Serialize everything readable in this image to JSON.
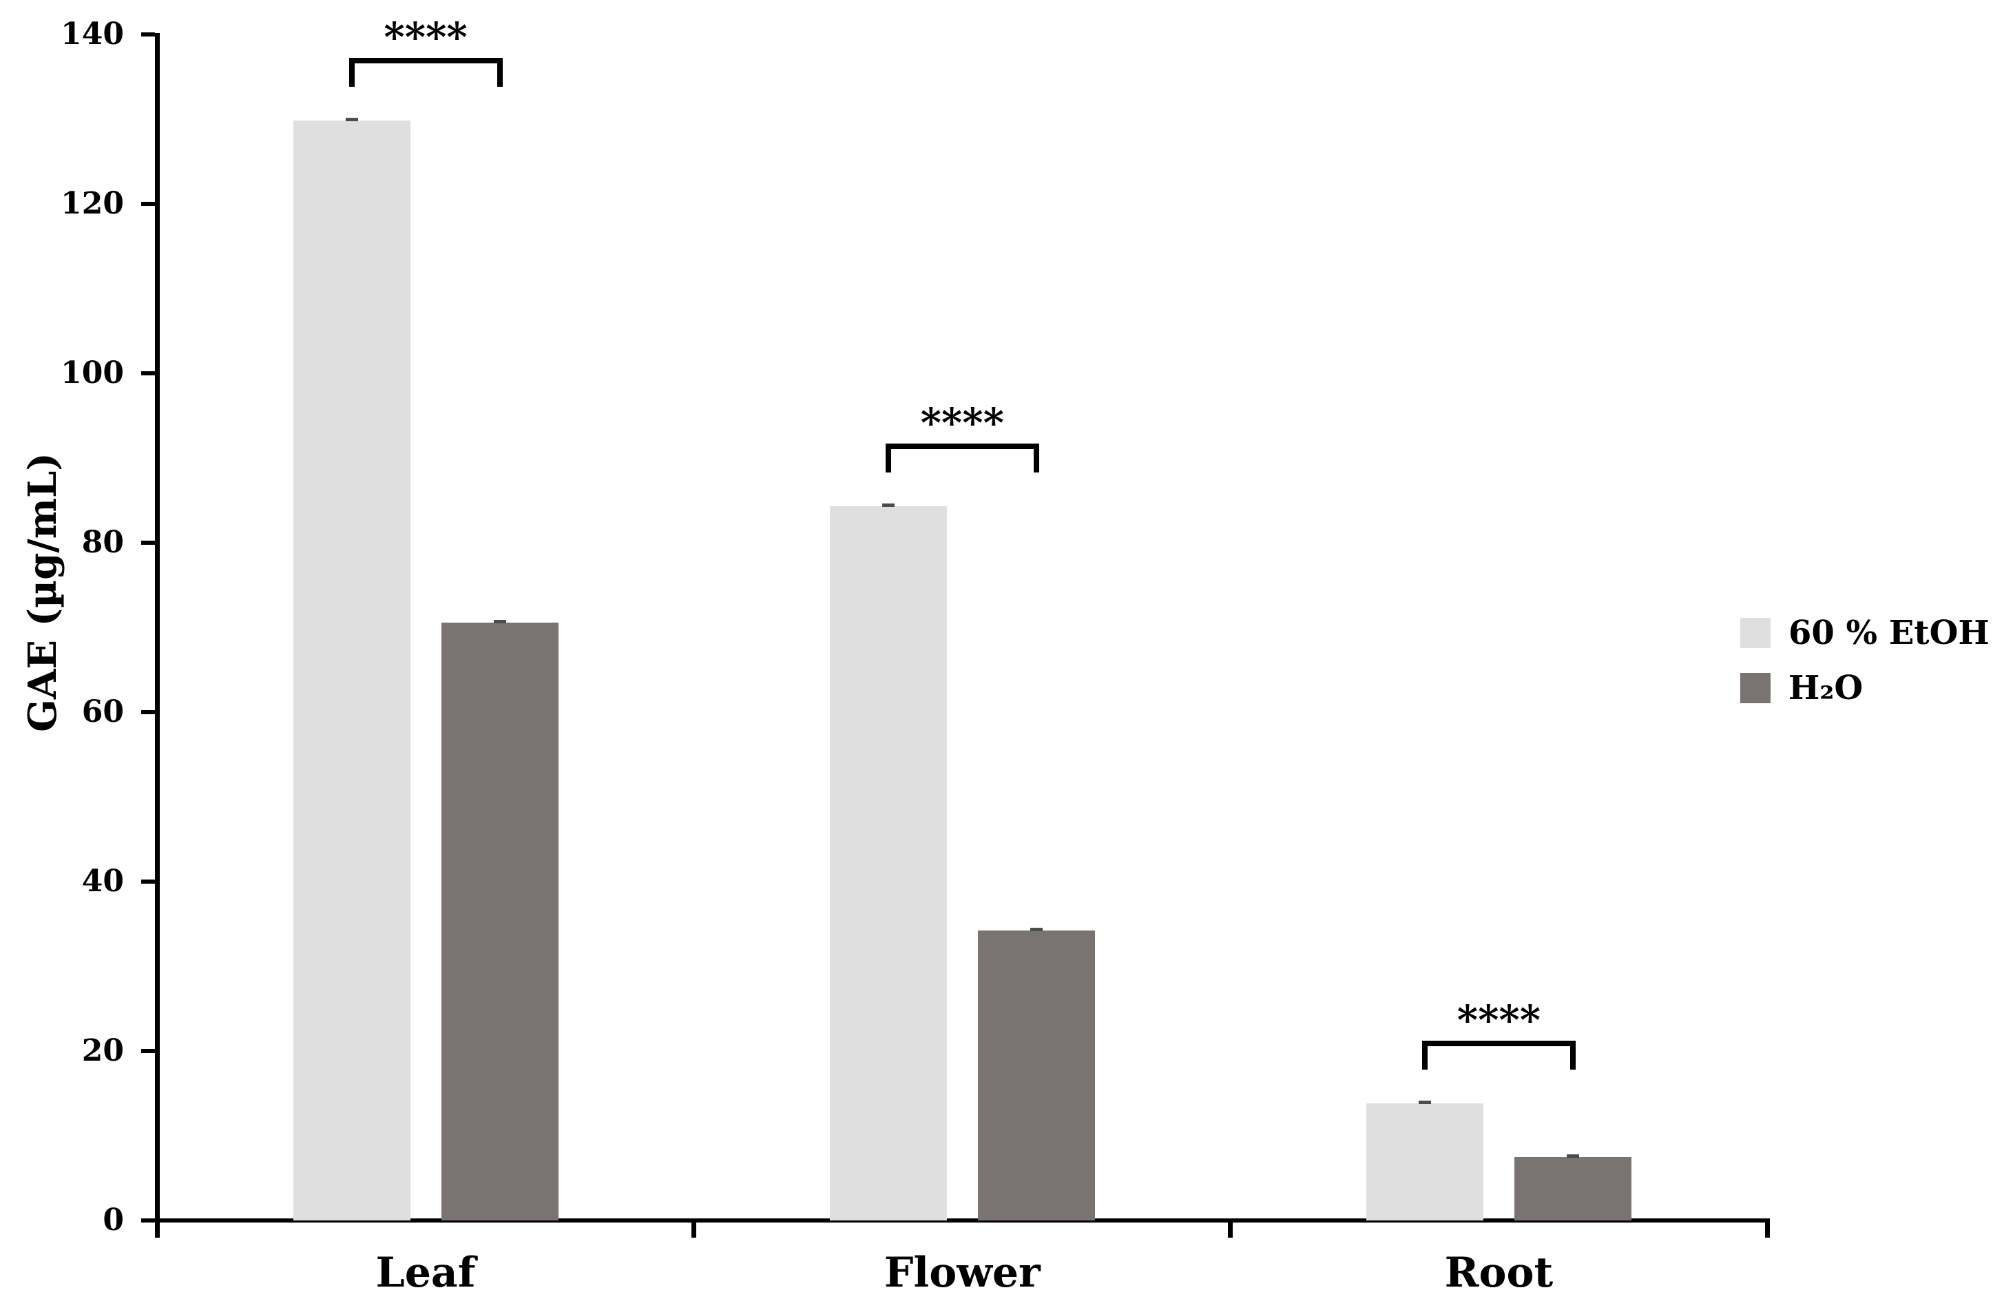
{
  "chart_data": {
    "type": "bar",
    "title": "",
    "ylabel": "GAE (µg/mL)",
    "xlabel": "",
    "ylim": [
      0,
      140
    ],
    "yticks": [
      0,
      20,
      40,
      60,
      80,
      100,
      120,
      140
    ],
    "grid": false,
    "legend_position": "right",
    "categories": [
      "Leaf",
      "Flower",
      "Root"
    ],
    "series": [
      {
        "name": "60 % EtOH",
        "color": "#dfdfdf",
        "values": [
          129.8,
          84.3,
          13.8
        ],
        "errors": [
          0.5,
          0.4,
          0.4
        ]
      },
      {
        "name": "H₂O",
        "color": "#797372",
        "values": [
          70.6,
          34.2,
          7.5
        ],
        "errors": [
          0.4,
          0.3,
          0.3
        ]
      }
    ],
    "significance": [
      {
        "category": "Leaf",
        "label": "****"
      },
      {
        "category": "Flower",
        "label": "****"
      },
      {
        "category": "Root",
        "label": "****"
      }
    ],
    "error_cap_color": "#4c4c4c",
    "axis_color": "#000000"
  }
}
